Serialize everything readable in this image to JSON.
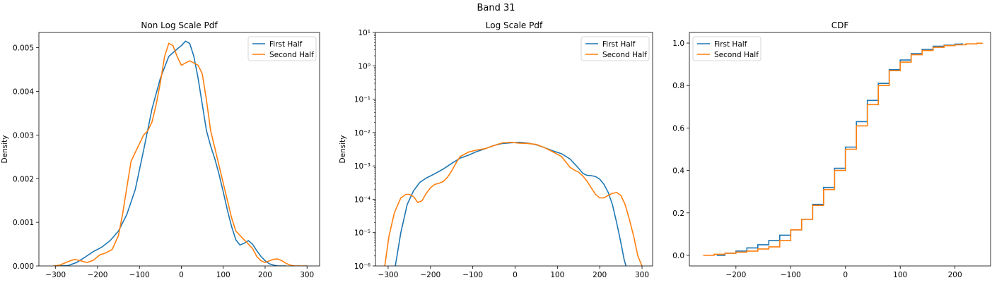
{
  "figure": {
    "suptitle": "Band 31"
  },
  "colors": {
    "first_half": "#1f77b4",
    "second_half": "#ff7f0e"
  },
  "chart_data": [
    {
      "type": "line",
      "title": "Non Log Scale Pdf",
      "xlabel": "",
      "ylabel": "Density",
      "xlim": [
        -340,
        330
      ],
      "ylim": [
        0,
        0.00535
      ],
      "yscale": "linear",
      "xticks": [
        -300,
        -200,
        -100,
        0,
        100,
        200,
        300
      ],
      "xtick_labels": [
        "−300",
        "−200",
        "−100",
        "0",
        "100",
        "200",
        "300"
      ],
      "yticks": [
        0,
        0.001,
        0.002,
        0.003,
        0.004,
        0.005
      ],
      "ytick_labels": [
        "0.000",
        "0.001",
        "0.002",
        "0.003",
        "0.004",
        "0.005"
      ],
      "legend": {
        "position": "top-right",
        "entries": [
          "First Half",
          "Second Half"
        ]
      },
      "series": [
        {
          "name": "First Half",
          "color": "#1f77b4",
          "x": [
            -290,
            -270,
            -250,
            -230,
            -210,
            -190,
            -170,
            -150,
            -130,
            -110,
            -90,
            -70,
            -50,
            -30,
            -10,
            0,
            10,
            20,
            30,
            40,
            50,
            60,
            70,
            80,
            90,
            100,
            110,
            120,
            130,
            140,
            150,
            160,
            170,
            180,
            190,
            200,
            210,
            220,
            230,
            240,
            250
          ],
          "y": [
            0.0,
            1e-05,
            8e-05,
            0.0002,
            0.00033,
            0.00043,
            0.00058,
            0.0008,
            0.00118,
            0.00175,
            0.00265,
            0.0036,
            0.0043,
            0.0048,
            0.00497,
            0.00505,
            0.00515,
            0.0051,
            0.0048,
            0.0043,
            0.0037,
            0.0031,
            0.00275,
            0.00245,
            0.0021,
            0.0017,
            0.00128,
            0.0009,
            0.0006,
            0.00048,
            0.00052,
            0.00058,
            0.0005,
            0.00035,
            0.00022,
            0.00012,
            5e-05,
            2e-05,
            0.0,
            0.0,
            0.0
          ]
        },
        {
          "name": "Second Half",
          "color": "#ff7f0e",
          "x": [
            -305,
            -290,
            -270,
            -255,
            -240,
            -225,
            -210,
            -195,
            -180,
            -165,
            -150,
            -140,
            -130,
            -120,
            -110,
            -100,
            -90,
            -80,
            -70,
            -60,
            -50,
            -40,
            -30,
            -20,
            -10,
            0,
            10,
            20,
            30,
            40,
            50,
            60,
            70,
            80,
            90,
            100,
            110,
            120,
            130,
            140,
            150,
            160,
            170,
            180,
            190,
            200,
            210,
            220,
            230,
            240,
            250,
            260,
            270,
            280,
            290,
            300
          ],
          "y": [
            0.0,
            2e-05,
            0.0001,
            0.00015,
            0.00012,
            8e-05,
            0.00013,
            0.00025,
            0.0003,
            0.00038,
            0.0007,
            0.0012,
            0.0018,
            0.0024,
            0.0026,
            0.0028,
            0.003,
            0.0031,
            0.0033,
            0.0037,
            0.0042,
            0.0048,
            0.0051,
            0.00505,
            0.0048,
            0.0046,
            0.00465,
            0.0047,
            0.00465,
            0.0046,
            0.0044,
            0.0038,
            0.0031,
            0.0027,
            0.0023,
            0.0019,
            0.0015,
            0.0011,
            0.0008,
            0.0007,
            0.0006,
            0.0005,
            0.0004,
            0.00022,
            0.00012,
            8e-05,
            0.00012,
            0.00015,
            0.00016,
            0.00012,
            6e-05,
            2e-05,
            0.0,
            0.0,
            0.0,
            0.0
          ]
        }
      ]
    },
    {
      "type": "line",
      "title": "Log Scale Pdf",
      "xlabel": "",
      "ylabel": "Density",
      "xlim": [
        -330,
        325
      ],
      "ylim": [
        1e-06,
        10
      ],
      "yscale": "log",
      "xticks": [
        -300,
        -200,
        -100,
        0,
        100,
        200,
        300
      ],
      "xtick_labels": [
        "−300",
        "−200",
        "−100",
        "0",
        "100",
        "200",
        "300"
      ],
      "yticks": [
        1e-06,
        1e-05,
        0.0001,
        0.001,
        0.01,
        0.1,
        1,
        10
      ],
      "ytick_labels": [
        "10⁻⁶",
        "10⁻⁵",
        "10⁻⁴",
        "10⁻³",
        "10⁻²",
        "10⁻¹",
        "10⁰",
        "10¹"
      ],
      "legend": {
        "position": "top-right",
        "entries": [
          "First Half",
          "Second Half"
        ]
      },
      "series": [
        {
          "name": "First Half",
          "color": "#1f77b4",
          "x": [
            -283,
            -270,
            -255,
            -240,
            -225,
            -210,
            -190,
            -170,
            -150,
            -130,
            -110,
            -90,
            -70,
            -50,
            -30,
            -10,
            10,
            30,
            50,
            70,
            90,
            110,
            130,
            150,
            160,
            170,
            180,
            190,
            200,
            210,
            220,
            230,
            240,
            250,
            258,
            262
          ],
          "y": [
            1e-06,
            1e-05,
            7e-05,
            0.00018,
            0.00032,
            0.00043,
            0.00058,
            0.0008,
            0.00118,
            0.0017,
            0.0021,
            0.0027,
            0.0033,
            0.0041,
            0.0047,
            0.0049,
            0.0051,
            0.0048,
            0.0043,
            0.0035,
            0.0028,
            0.0023,
            0.0016,
            0.00085,
            0.0006,
            0.00052,
            0.00051,
            0.00048,
            0.0004,
            0.00028,
            0.00016,
            7e-05,
            2e-05,
            5e-06,
            1.5e-06,
            1e-06
          ]
        },
        {
          "name": "Second Half",
          "color": "#ff7f0e",
          "x": [
            -308,
            -298,
            -285,
            -270,
            -258,
            -250,
            -240,
            -230,
            -220,
            -210,
            -200,
            -190,
            -180,
            -170,
            -160,
            -150,
            -140,
            -130,
            -110,
            -90,
            -70,
            -50,
            -30,
            -10,
            10,
            30,
            50,
            70,
            90,
            110,
            120,
            130,
            140,
            150,
            160,
            170,
            180,
            190,
            200,
            210,
            220,
            230,
            240,
            250,
            260,
            270,
            280,
            290,
            300
          ],
          "y": [
            1e-06,
            8e-06,
            4e-05,
            0.00011,
            0.00014,
            0.00014,
            0.00012,
            8e-05,
            9e-05,
            0.00015,
            0.00022,
            0.00028,
            0.0003,
            0.00034,
            0.00045,
            0.0007,
            0.0012,
            0.0019,
            0.0026,
            0.003,
            0.0033,
            0.0041,
            0.0049,
            0.0051,
            0.0048,
            0.0047,
            0.0044,
            0.0035,
            0.0026,
            0.0019,
            0.0013,
            0.0009,
            0.00075,
            0.00065,
            0.0005,
            0.00035,
            0.00022,
            0.00014,
            0.00011,
            0.00011,
            0.00013,
            0.00015,
            0.00016,
            0.00013,
            7e-05,
            2.5e-05,
            8e-06,
            2e-06,
            1e-06
          ]
        }
      ]
    },
    {
      "type": "line",
      "title": "CDF",
      "xlabel": "",
      "ylabel": "",
      "xlim": [
        -285,
        265
      ],
      "ylim": [
        -0.05,
        1.05
      ],
      "yscale": "linear",
      "xticks": [
        -200,
        -100,
        0,
        100,
        200
      ],
      "xtick_labels": [
        "−200",
        "−100",
        "0",
        "100",
        "200"
      ],
      "yticks": [
        0.0,
        0.2,
        0.4,
        0.6,
        0.8,
        1.0
      ],
      "ytick_labels": [
        "0.0",
        "0.2",
        "0.4",
        "0.6",
        "0.8",
        "1.0"
      ],
      "legend": {
        "position": "top-left",
        "entries": [
          "First Half",
          "Second Half"
        ]
      },
      "series": [
        {
          "name": "First Half",
          "color": "#1f77b4",
          "x": [
            -235,
            -220,
            -200,
            -180,
            -160,
            -140,
            -120,
            -100,
            -80,
            -60,
            -40,
            -20,
            0,
            20,
            40,
            60,
            80,
            100,
            120,
            140,
            160,
            180,
            200,
            213
          ],
          "y": [
            0.0,
            0.01,
            0.02,
            0.035,
            0.05,
            0.07,
            0.095,
            0.12,
            0.17,
            0.24,
            0.32,
            0.41,
            0.51,
            0.63,
            0.73,
            0.81,
            0.875,
            0.92,
            0.95,
            0.97,
            0.985,
            0.99,
            0.995,
            1.0
          ]
        },
        {
          "name": "Second Half",
          "color": "#ff7f0e",
          "x": [
            -260,
            -240,
            -220,
            -200,
            -180,
            -160,
            -140,
            -120,
            -100,
            -80,
            -60,
            -40,
            -20,
            0,
            20,
            40,
            60,
            80,
            100,
            120,
            140,
            160,
            180,
            200,
            220,
            240,
            250
          ],
          "y": [
            0.0,
            0.005,
            0.01,
            0.015,
            0.02,
            0.03,
            0.04,
            0.07,
            0.12,
            0.17,
            0.235,
            0.31,
            0.4,
            0.5,
            0.61,
            0.71,
            0.8,
            0.87,
            0.91,
            0.945,
            0.965,
            0.98,
            0.988,
            0.992,
            0.996,
            0.999,
            1.0
          ]
        }
      ]
    }
  ]
}
